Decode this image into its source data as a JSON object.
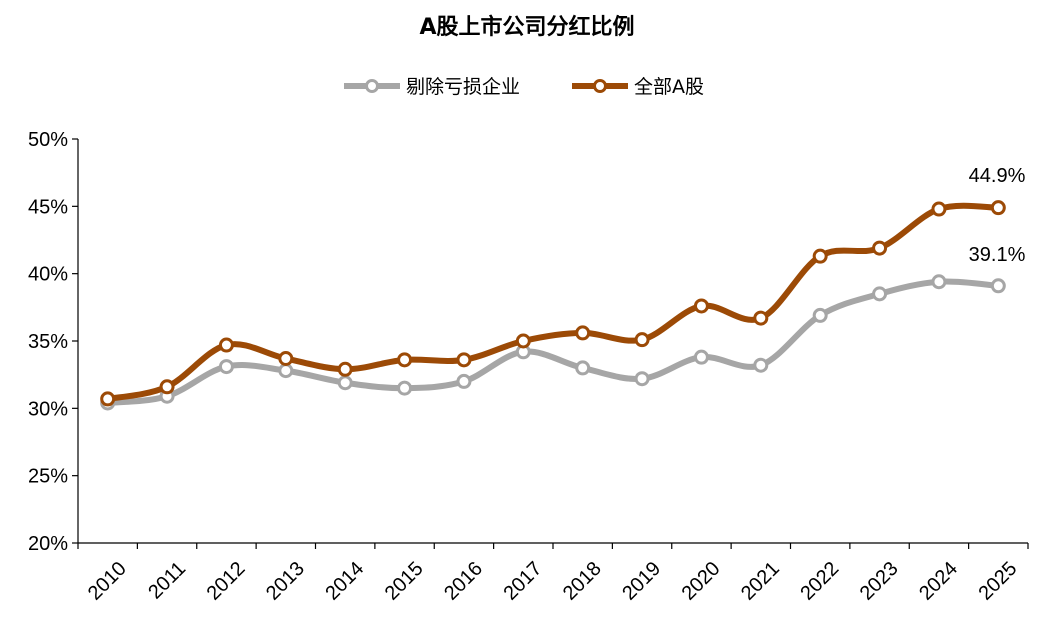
{
  "chart_data": {
    "type": "line",
    "title": "A股上市公司分红比例",
    "x": [
      "2010",
      "2011",
      "2012",
      "2013",
      "2014",
      "2015",
      "2016",
      "2017",
      "2018",
      "2019",
      "2020",
      "2021",
      "2022",
      "2023",
      "2024",
      "2025"
    ],
    "ylim": [
      20,
      50
    ],
    "yticks": [
      "20%",
      "25%",
      "30%",
      "35%",
      "40%",
      "45%",
      "50%"
    ],
    "grid": false,
    "legend_position": "top-center",
    "series": [
      {
        "name": "剔除亏损企业",
        "color": "#a6a6a6",
        "values": [
          30.4,
          30.9,
          33.1,
          32.8,
          31.9,
          31.5,
          32.0,
          34.2,
          33.0,
          32.2,
          33.8,
          33.2,
          36.9,
          38.5,
          39.4,
          39.1
        ]
      },
      {
        "name": "全部A股",
        "color": "#9c4a06",
        "values": [
          30.7,
          31.6,
          34.7,
          33.7,
          32.9,
          33.6,
          33.6,
          35.0,
          35.6,
          35.1,
          37.6,
          36.7,
          41.3,
          41.9,
          44.8,
          44.9
        ]
      }
    ],
    "annotations": [
      "44.9%",
      "39.1%"
    ]
  }
}
